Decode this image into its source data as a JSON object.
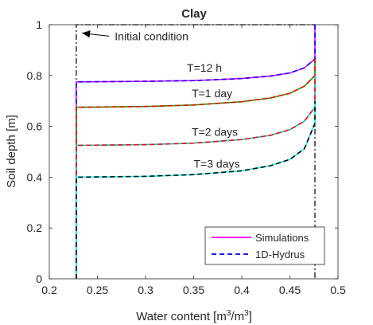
{
  "chart_data": {
    "type": "line",
    "title": "Clay",
    "xlabel": "Water content [m",
    "xlabel_sup1": "3",
    "xlabel_mid": "/m",
    "xlabel_sup2": "3",
    "xlabel_end": "]",
    "ylabel": "Soil depth [m]",
    "xlim": [
      0.2,
      0.5
    ],
    "ylim": [
      0,
      1
    ],
    "xticks": [
      0.2,
      0.25,
      0.3,
      0.35,
      0.4,
      0.45,
      0.5
    ],
    "xtick_labels": [
      "0.2",
      "0.25",
      "0.3",
      "0.35",
      "0.4",
      "0.45",
      "0.5"
    ],
    "yticks": [
      0,
      0.2,
      0.4,
      0.6,
      0.8,
      1
    ],
    "ytick_labels": [
      "0",
      "0.2",
      "0.4",
      "0.6",
      "0.8",
      "1"
    ],
    "grid": false,
    "legend_position": "bottom-right",
    "legend": [
      {
        "label": "Simulations",
        "style": "solid",
        "color": "#ff00ff"
      },
      {
        "label": "1D-Hydrus",
        "style": "dashed",
        "color": "#0000ff"
      }
    ],
    "initial_condition": {
      "label": "Initial condition",
      "color": "#000000",
      "style": "dash-dot",
      "x": [
        0.228,
        0.228,
        0.476,
        0.476
      ],
      "y": [
        0,
        1,
        1,
        0
      ]
    },
    "profiles": [
      {
        "label": "T=12 h",
        "sim_color": "#ff00ff",
        "ref_color": "#0000ff",
        "x": [
          0.228,
          0.228,
          0.3,
          0.35,
          0.4,
          0.43,
          0.45,
          0.465,
          0.476,
          0.476
        ],
        "y": [
          0,
          0.775,
          0.777,
          0.78,
          0.788,
          0.798,
          0.81,
          0.83,
          0.865,
          1.0
        ]
      },
      {
        "label": "T=1 day",
        "sim_color": "#00aa00",
        "ref_color": "#ff0000",
        "x": [
          0.228,
          0.228,
          0.3,
          0.35,
          0.4,
          0.43,
          0.45,
          0.465,
          0.476,
          0.476
        ],
        "y": [
          0,
          0.675,
          0.678,
          0.684,
          0.697,
          0.712,
          0.73,
          0.758,
          0.8,
          0.865
        ]
      },
      {
        "label": "T=2 days",
        "sim_color": "#00cccc",
        "ref_color": "#ff0000",
        "x": [
          0.228,
          0.228,
          0.3,
          0.35,
          0.4,
          0.43,
          0.45,
          0.465,
          0.476,
          0.476
        ],
        "y": [
          0,
          0.525,
          0.528,
          0.534,
          0.548,
          0.565,
          0.587,
          0.62,
          0.675,
          0.8
        ]
      },
      {
        "label": "T=3 days",
        "sim_color": "#00ffff",
        "ref_color": "#000000",
        "x": [
          0.228,
          0.228,
          0.3,
          0.35,
          0.4,
          0.43,
          0.45,
          0.465,
          0.476,
          0.476
        ],
        "y": [
          0,
          0.4,
          0.403,
          0.41,
          0.425,
          0.445,
          0.47,
          0.512,
          0.612,
          0.7
        ]
      }
    ],
    "profile_label_anchors": [
      {
        "label": "T=12 h",
        "x": 0.343,
        "y": 0.815
      },
      {
        "label": "T=1 day",
        "x": 0.348,
        "y": 0.715
      },
      {
        "label": "T=2 days",
        "x": 0.348,
        "y": 0.563
      },
      {
        "label": "T=3 days",
        "x": 0.35,
        "y": 0.437
      }
    ],
    "annotation_arrow": {
      "label": "Initial condition",
      "from": [
        0.262,
        0.955
      ],
      "to": [
        0.234,
        0.967
      ],
      "text_at": [
        0.268,
        0.955
      ]
    }
  }
}
